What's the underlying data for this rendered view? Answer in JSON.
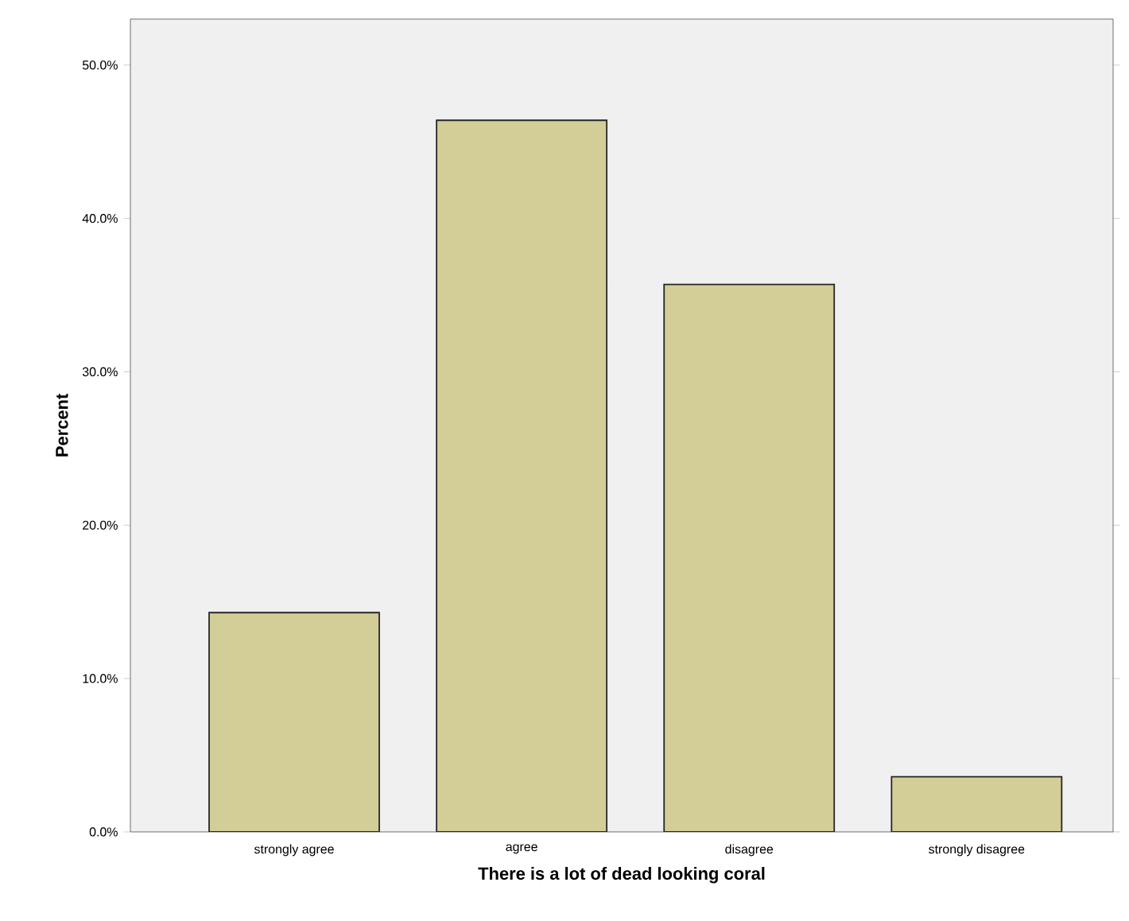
{
  "chart_data": {
    "type": "bar",
    "xlabel": "There is a lot of dead looking coral",
    "ylabel": "Percent",
    "categories": [
      "strongly agree",
      "agree",
      "disagree",
      "strongly disagree"
    ],
    "values": [
      14.3,
      46.4,
      35.7,
      3.6
    ],
    "color": "#d3ce97",
    "ylim": [
      0,
      53
    ],
    "yticks": [
      {
        "value": 0,
        "label": "0.0%"
      },
      {
        "value": 10,
        "label": "10.0%"
      },
      {
        "value": 20,
        "label": "20.0%"
      },
      {
        "value": 30,
        "label": "30.0%"
      },
      {
        "value": 40,
        "label": "40.0%"
      },
      {
        "value": 50,
        "label": "50.0%"
      }
    ]
  }
}
